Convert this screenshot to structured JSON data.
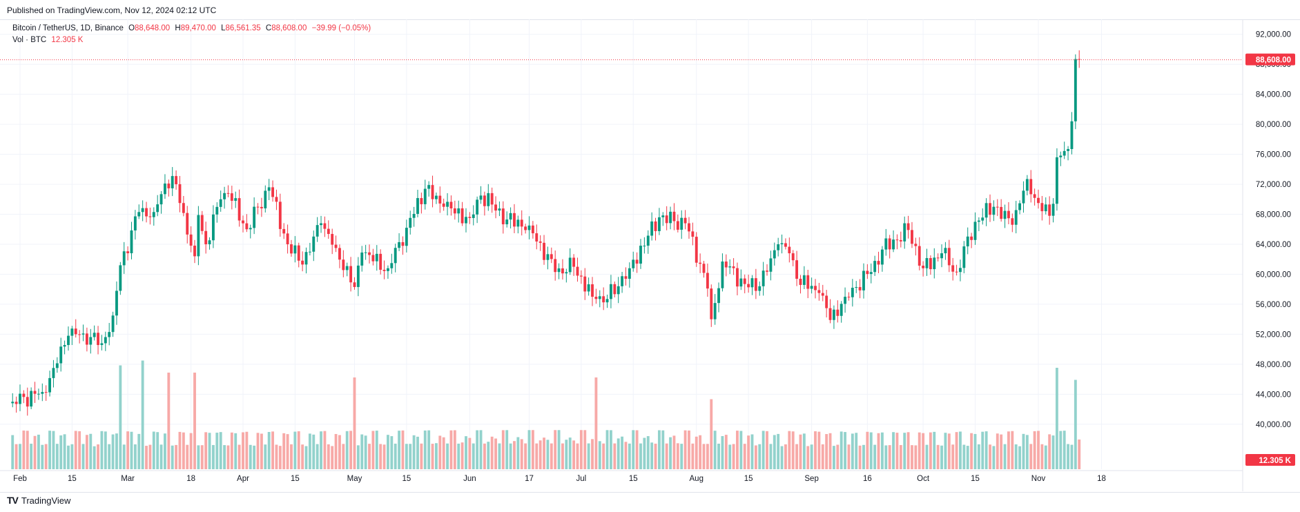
{
  "header": {
    "published": "Published on TradingView.com, Nov 12, 2024 02:12 UTC"
  },
  "legend": {
    "symbol": "Bitcoin / TetherUS, 1D, Binance",
    "open_label": "O",
    "open": "88,648.00",
    "high_label": "H",
    "high": "89,470.00",
    "low_label": "L",
    "low": "86,561.35",
    "close_label": "C",
    "close": "88,608.00",
    "change": "−39.99 (−0.05%)",
    "volume_label": "Vol · BTC",
    "volume": "12.305 K"
  },
  "footer": {
    "brand": "TradingView"
  },
  "colors": {
    "up": "#089981",
    "down": "#f23645",
    "vol_up": "#92d2cc",
    "vol_down": "#f7a9a7",
    "grid": "#f0f3fa",
    "text": "#131722"
  },
  "chart_data": {
    "type": "candlestick",
    "title": "Bitcoin / TetherUS, 1D, Binance",
    "ylim": [
      34000,
      94000
    ],
    "y_ticks": [
      "40,000.00",
      "44,000.00",
      "48,000.00",
      "52,000.00",
      "56,000.00",
      "60,000.00",
      "64,000.00",
      "68,000.00",
      "72,000.00",
      "76,000.00",
      "80,000.00",
      "84,000.00",
      "88,000.00",
      "92,000.00"
    ],
    "x_ticks": [
      "Feb",
      "15",
      "Mar",
      "18",
      "Apr",
      "15",
      "May",
      "15",
      "Jun",
      "17",
      "Jul",
      "15",
      "Aug",
      "15",
      "Sep",
      "16",
      "Oct",
      "15",
      "Nov",
      "18"
    ],
    "last_price_label": "88,608.00",
    "last_volume_label": "12.305 K",
    "series": [
      {
        "name": "price",
        "keypoints": [
          [
            "Jan 30",
            43000
          ],
          [
            "Feb 7",
            44300
          ],
          [
            "Feb 10",
            47500
          ],
          [
            "Feb 14",
            51800
          ],
          [
            "Feb 18",
            52100
          ],
          [
            "Feb 23",
            50800
          ],
          [
            "Feb 26",
            54500
          ],
          [
            "Feb 28",
            61200
          ],
          [
            "Mar 4",
            68300
          ],
          [
            "Mar 8",
            68300
          ],
          [
            "Mar 11",
            72100
          ],
          [
            "Mar 13",
            73100
          ],
          [
            "Mar 15",
            69500
          ],
          [
            "Mar 19",
            62400
          ],
          [
            "Mar 20",
            67900
          ],
          [
            "Mar 22",
            64000
          ],
          [
            "Mar 26",
            70000
          ],
          [
            "Mar 28",
            70800
          ],
          [
            "Apr 2",
            66000
          ],
          [
            "Apr 8",
            71600
          ],
          [
            "Apr 13",
            64000
          ],
          [
            "Apr 17",
            61300
          ],
          [
            "Apr 22",
            66800
          ],
          [
            "Apr 26",
            63500
          ],
          [
            "May 1",
            58300
          ],
          [
            "May 3",
            62900
          ],
          [
            "May 10",
            60800
          ],
          [
            "May 15",
            66200
          ],
          [
            "May 20",
            71400
          ],
          [
            "May 25",
            69000
          ],
          [
            "Jun 1",
            67500
          ],
          [
            "Jun 4",
            70500
          ],
          [
            "Jun 7",
            69300
          ],
          [
            "Jun 11",
            67300
          ],
          [
            "Jun 17",
            66500
          ],
          [
            "Jun 24",
            60300
          ],
          [
            "Jun 29",
            61000
          ],
          [
            "Jul 4",
            57000
          ],
          [
            "Jul 5",
            56700
          ],
          [
            "Jul 8",
            56700
          ],
          [
            "Jul 14",
            60800
          ],
          [
            "Jul 22",
            67600
          ],
          [
            "Jul 29",
            66800
          ],
          [
            "Aug 2",
            61400
          ],
          [
            "Aug 4",
            58100
          ],
          [
            "Aug 5",
            54000
          ],
          [
            "Aug 8",
            61700
          ],
          [
            "Aug 14",
            58700
          ],
          [
            "Aug 18",
            58400
          ],
          [
            "Aug 23",
            64000
          ],
          [
            "Aug 26",
            62800
          ],
          [
            "Aug 28",
            59400
          ],
          [
            "Sep 3",
            57500
          ],
          [
            "Sep 6",
            53900
          ],
          [
            "Sep 10",
            57000
          ],
          [
            "Sep 17",
            60300
          ],
          [
            "Sep 20",
            63300
          ],
          [
            "Sep 27",
            65900
          ],
          [
            "Oct 1",
            60800
          ],
          [
            "Oct 6",
            62800
          ],
          [
            "Oct 10",
            60300
          ],
          [
            "Oct 15",
            67000
          ],
          [
            "Oct 20",
            69000
          ],
          [
            "Oct 25",
            66600
          ],
          [
            "Oct 29",
            72700
          ],
          [
            "Nov 1",
            69500
          ],
          [
            "Nov 4",
            67800
          ],
          [
            "Nov 5",
            69400
          ],
          [
            "Nov 6",
            75600
          ],
          [
            "Nov 9",
            76700
          ],
          [
            "Nov 10",
            80400
          ],
          [
            "Nov 11",
            88700
          ],
          [
            "Nov 12",
            88608
          ]
        ]
      },
      {
        "name": "volume",
        "peaks": [
          [
            "Feb 28",
            43
          ],
          [
            "Mar 5",
            45
          ],
          [
            "Mar 12",
            40
          ],
          [
            "Mar 19",
            40
          ],
          [
            "May 1",
            38
          ],
          [
            "Jul 5",
            38
          ],
          [
            "Aug 5",
            29
          ],
          [
            "Nov 6",
            42
          ],
          [
            "Nov 11",
            37
          ],
          [
            "Nov 12",
            12.305
          ]
        ]
      }
    ]
  }
}
